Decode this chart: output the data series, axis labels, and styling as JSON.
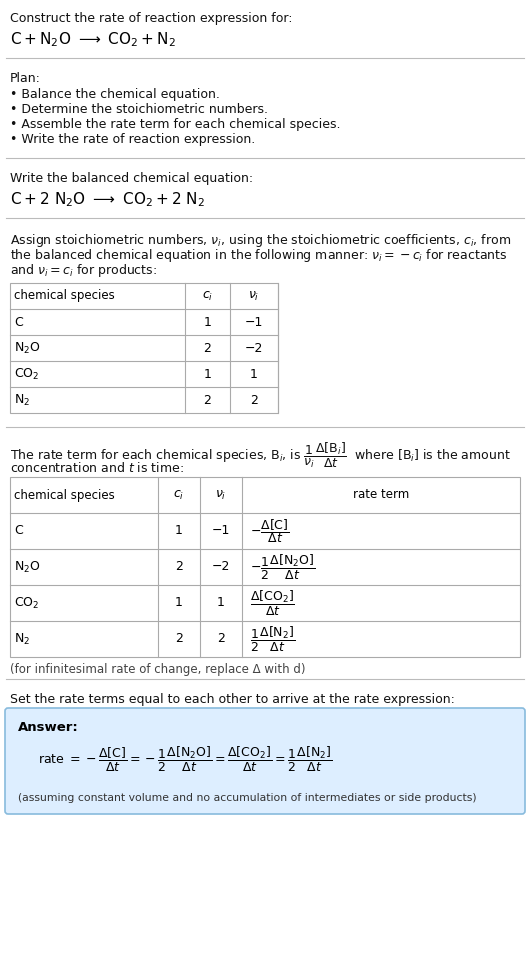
{
  "title_line1": "Construct the rate of reaction expression for:",
  "plan_items": [
    "• Balance the chemical equation.",
    "• Determine the stoichiometric numbers.",
    "• Assemble the rate term for each chemical species.",
    "• Write the rate of reaction expression."
  ],
  "table1_rows": [
    [
      "C",
      "1",
      "−1"
    ],
    [
      "N_2O",
      "2",
      "−2"
    ],
    [
      "CO_2",
      "1",
      "1"
    ],
    [
      "N_2",
      "2",
      "2"
    ]
  ],
  "table2_rows": [
    [
      "C",
      "1",
      "−1"
    ],
    [
      "N_2O",
      "2",
      "−2"
    ],
    [
      "CO_2",
      "1",
      "1"
    ],
    [
      "N_2",
      "2",
      "2"
    ]
  ],
  "infinitesimal_note": "(for infinitesimal rate of change, replace Δ with d)",
  "set_equal_header": "Set the rate terms equal to each other to arrive at the rate expression:",
  "answer_box_color": "#ddeeff",
  "answer_border_color": "#88bbdd",
  "bg_color": "#ffffff",
  "table_border_color": "#aaaaaa"
}
